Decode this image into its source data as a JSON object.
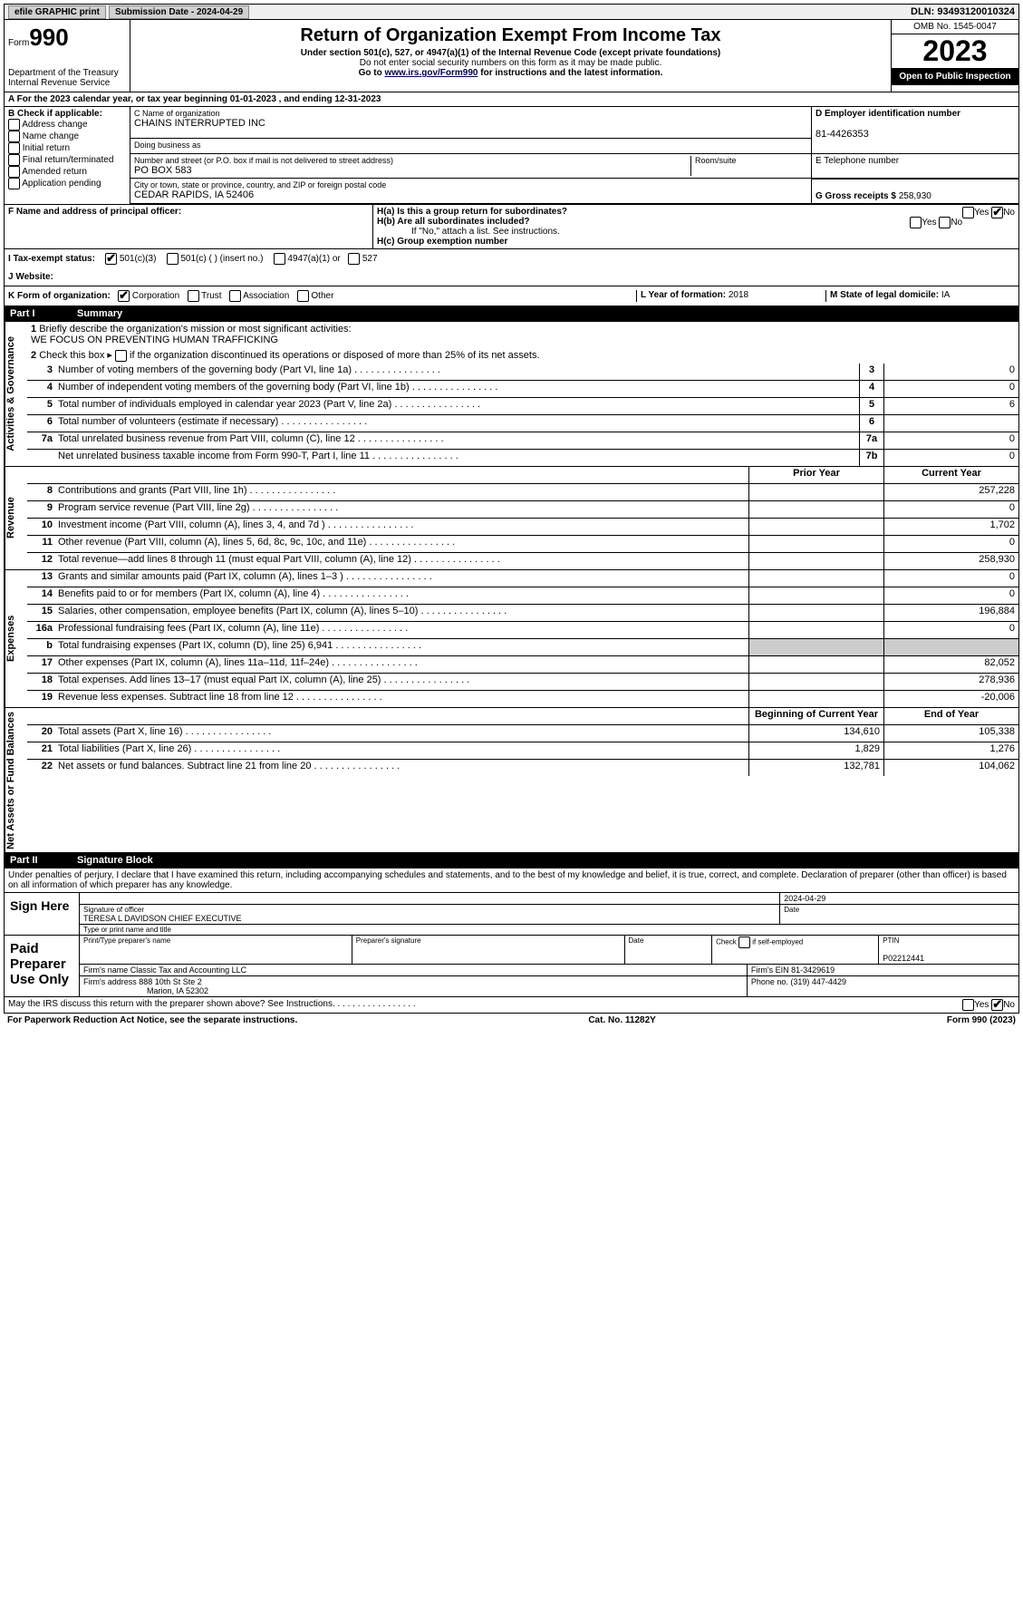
{
  "topbar": {
    "efile": "efile GRAPHIC print",
    "subdate_label": "Submission Date - ",
    "subdate": "2024-04-29",
    "dln_label": "DLN: ",
    "dln": "93493120010324"
  },
  "header": {
    "form_label": "Form",
    "form_num": "990",
    "dept": "Department of the Treasury\nInternal Revenue Service",
    "title": "Return of Organization Exempt From Income Tax",
    "sub1": "Under section 501(c), 527, or 4947(a)(1) of the Internal Revenue Code (except private foundations)",
    "sub2": "Do not enter social security numbers on this form as it may be made public.",
    "sub3_pre": "Go to ",
    "sub3_link": "www.irs.gov/Form990",
    "sub3_post": " for instructions and the latest information.",
    "omb": "OMB No. 1545-0047",
    "year": "2023",
    "open": "Open to Public Inspection"
  },
  "period": {
    "text_pre": "For the 2023 calendar year, or tax year beginning ",
    "beg": "01-01-2023",
    "mid": " , and ending ",
    "end": "12-31-2023"
  },
  "boxB": {
    "label": "B Check if applicable:",
    "opts": [
      "Address change",
      "Name change",
      "Initial return",
      "Final return/terminated",
      "Amended return",
      "Application pending"
    ]
  },
  "boxC": {
    "name_lbl": "C Name of organization",
    "name": "CHAINS INTERRUPTED INC",
    "dba_lbl": "Doing business as",
    "dba": "",
    "addr_lbl": "Number and street (or P.O. box if mail is not delivered to street address)",
    "addr": "PO BOX 583",
    "room_lbl": "Room/suite",
    "city_lbl": "City or town, state or province, country, and ZIP or foreign postal code",
    "city": "CEDAR RAPIDS, IA  52406"
  },
  "boxD": {
    "lbl": "D Employer identification number",
    "val": "81-4426353"
  },
  "boxE": {
    "lbl": "E Telephone number",
    "val": ""
  },
  "boxG": {
    "lbl": "G Gross receipts $ ",
    "val": "258,930"
  },
  "boxF": {
    "lbl": "F  Name and address of principal officer:",
    "val": ""
  },
  "boxH": {
    "a_lbl": "H(a)  Is this a group return for subordinates?",
    "a_yes": false,
    "a_no": true,
    "b_lbl": "H(b)  Are all subordinates included?",
    "b_yes": false,
    "b_no": false,
    "b_note": "If \"No,\" attach a list. See instructions.",
    "c_lbl": "H(c)  Group exemption number "
  },
  "boxI": {
    "lbl": "I  Tax-exempt status:",
    "c3": true,
    "opts": [
      "501(c)(3)",
      "501(c) (  ) (insert no.)",
      "4947(a)(1) or",
      "527"
    ]
  },
  "boxJ": {
    "lbl": "J  Website: ",
    "val": ""
  },
  "boxK": {
    "lbl": "K Form of organization:",
    "corp": true,
    "opts": [
      "Corporation",
      "Trust",
      "Association",
      "Other"
    ]
  },
  "boxL": {
    "lbl": "L Year of formation: ",
    "val": "2018"
  },
  "boxM": {
    "lbl": "M State of legal domicile: ",
    "val": "IA"
  },
  "partI": {
    "num": "Part I",
    "title": "Summary"
  },
  "summary": {
    "sections": {
      "ag": "Activities & Governance",
      "rev": "Revenue",
      "exp": "Expenses",
      "na": "Net Assets or Fund Balances"
    },
    "q1_lbl": "Briefly describe the organization's mission or most significant activities:",
    "q1_val": "WE FOCUS ON PREVENTING HUMAN TRAFFICKING",
    "q2_lbl": "Check this box ▸      if the organization discontinued its operations or disposed of more than 25% of its net assets.",
    "rows_ag": [
      {
        "n": "3",
        "d": "Number of voting members of the governing body (Part VI, line 1a)",
        "box": "3",
        "v": "0"
      },
      {
        "n": "4",
        "d": "Number of independent voting members of the governing body (Part VI, line 1b)",
        "box": "4",
        "v": "0"
      },
      {
        "n": "5",
        "d": "Total number of individuals employed in calendar year 2023 (Part V, line 2a)",
        "box": "5",
        "v": "6"
      },
      {
        "n": "6",
        "d": "Total number of volunteers (estimate if necessary)",
        "box": "6",
        "v": ""
      },
      {
        "n": "7a",
        "d": "Total unrelated business revenue from Part VIII, column (C), line 12",
        "box": "7a",
        "v": "0"
      },
      {
        "n": "",
        "d": "Net unrelated business taxable income from Form 990-T, Part I, line 11",
        "box": "7b",
        "v": "0"
      }
    ],
    "hdr_prior": "Prior Year",
    "hdr_curr": "Current Year",
    "rows_rev": [
      {
        "n": "8",
        "d": "Contributions and grants (Part VIII, line 1h)",
        "p": "",
        "c": "257,228"
      },
      {
        "n": "9",
        "d": "Program service revenue (Part VIII, line 2g)",
        "p": "",
        "c": "0"
      },
      {
        "n": "10",
        "d": "Investment income (Part VIII, column (A), lines 3, 4, and 7d )",
        "p": "",
        "c": "1,702"
      },
      {
        "n": "11",
        "d": "Other revenue (Part VIII, column (A), lines 5, 6d, 8c, 9c, 10c, and 11e)",
        "p": "",
        "c": "0"
      },
      {
        "n": "12",
        "d": "Total revenue—add lines 8 through 11 (must equal Part VIII, column (A), line 12)",
        "p": "",
        "c": "258,930"
      }
    ],
    "rows_exp": [
      {
        "n": "13",
        "d": "Grants and similar amounts paid (Part IX, column (A), lines 1–3 )",
        "p": "",
        "c": "0"
      },
      {
        "n": "14",
        "d": "Benefits paid to or for members (Part IX, column (A), line 4)",
        "p": "",
        "c": "0"
      },
      {
        "n": "15",
        "d": "Salaries, other compensation, employee benefits (Part IX, column (A), lines 5–10)",
        "p": "",
        "c": "196,884"
      },
      {
        "n": "16a",
        "d": "Professional fundraising fees (Part IX, column (A), line 11e)",
        "p": "",
        "c": "0"
      },
      {
        "n": "b",
        "d": "Total fundraising expenses (Part IX, column (D), line 25) 6,941",
        "p": "grey",
        "c": "grey"
      },
      {
        "n": "17",
        "d": "Other expenses (Part IX, column (A), lines 11a–11d, 11f–24e)",
        "p": "",
        "c": "82,052"
      },
      {
        "n": "18",
        "d": "Total expenses. Add lines 13–17 (must equal Part IX, column (A), line 25)",
        "p": "",
        "c": "278,936"
      },
      {
        "n": "19",
        "d": "Revenue less expenses. Subtract line 18 from line 12",
        "p": "",
        "c": "-20,006"
      }
    ],
    "hdr_beg": "Beginning of Current Year",
    "hdr_end": "End of Year",
    "rows_na": [
      {
        "n": "20",
        "d": "Total assets (Part X, line 16)",
        "p": "134,610",
        "c": "105,338"
      },
      {
        "n": "21",
        "d": "Total liabilities (Part X, line 26)",
        "p": "1,829",
        "c": "1,276"
      },
      {
        "n": "22",
        "d": "Net assets or fund balances. Subtract line 21 from line 20",
        "p": "132,781",
        "c": "104,062"
      }
    ]
  },
  "partII": {
    "num": "Part II",
    "title": "Signature Block"
  },
  "sig": {
    "decl": "Under penalties of perjury, I declare that I have examined this return, including accompanying schedules and statements, and to the best of my knowledge and belief, it is true, correct, and complete. Declaration of preparer (other than officer) is based on all information of which preparer has any knowledge.",
    "sign_here": "Sign Here",
    "sig_officer_lbl": "Signature of officer",
    "sig_date_lbl": "Date",
    "sig_date": "2024-04-29",
    "officer": "TERESA L DAVIDSON  CHIEF EXECUTIVE",
    "officer_lbl": "Type or print name and title",
    "paid": "Paid Preparer Use Only",
    "prep_name_lbl": "Print/Type preparer's name",
    "prep_sig_lbl": "Preparer's signature",
    "prep_date_lbl": "Date",
    "prep_self_lbl": "Check        if self-employed",
    "ptin_lbl": "PTIN",
    "ptin": "P02212441",
    "firm_name_lbl": "Firm's name  ",
    "firm_name": "Classic Tax and Accounting LLC",
    "firm_ein_lbl": "Firm's EIN  ",
    "firm_ein": "81-3429619",
    "firm_addr_lbl": "Firm's address ",
    "firm_addr1": "888 10th St Ste 2",
    "firm_addr2": "Marion, IA  52302",
    "phone_lbl": "Phone no. ",
    "phone": "(319) 447-4429"
  },
  "foot": {
    "discuss": "May the IRS discuss this return with the preparer shown above? See Instructions.",
    "discuss_yes": false,
    "discuss_no": true,
    "paperwork": "For Paperwork Reduction Act Notice, see the separate instructions.",
    "catno": "Cat. No. 11282Y",
    "form": "Form 990 (2023)"
  }
}
